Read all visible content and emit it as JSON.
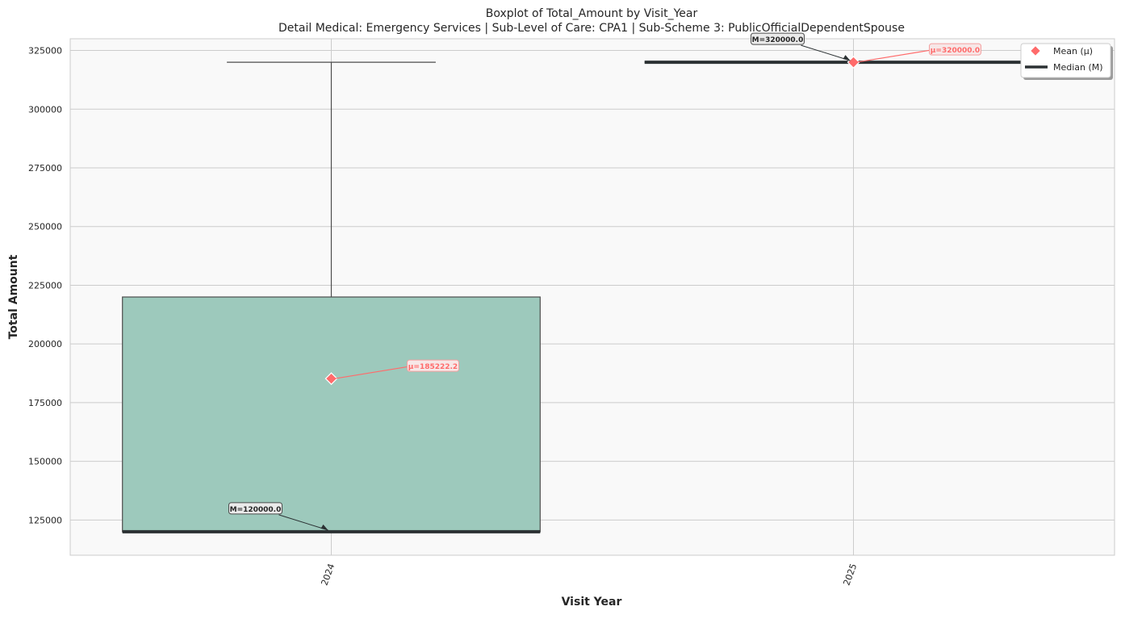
{
  "chart_data": {
    "type": "box",
    "title": "Boxplot of Total_Amount by Visit_Year",
    "subtitle": "Detail Medical: Emergency Services | Sub-Level of Care: CPA1 | Sub-Scheme 3: PublicOfficialDependentSpouse",
    "xlabel": "Visit Year",
    "ylabel": "Total Amount",
    "categories": [
      "2024",
      "2025"
    ],
    "ylim": [
      110000,
      330000
    ],
    "yticks": [
      125000,
      150000,
      175000,
      200000,
      225000,
      250000,
      275000,
      300000,
      325000
    ],
    "ytick_labels": [
      "125000",
      "150000",
      "175000",
      "200000",
      "225000",
      "250000",
      "275000",
      "300000",
      "325000"
    ],
    "boxes": [
      {
        "category": "2024",
        "min": 120000,
        "q1": 120000,
        "median": 120000,
        "q3": 220000,
        "max": 320000,
        "mean": 185222.2
      },
      {
        "category": "2025",
        "min": 320000,
        "q1": 320000,
        "median": 320000,
        "q3": 320000,
        "max": 320000,
        "mean": 320000.0
      }
    ],
    "median_labels": [
      "M=120000.0",
      "M=320000.0"
    ],
    "mean_labels": [
      "μ=185222.2",
      "μ=320000.0"
    ],
    "legend": {
      "position": "top-right",
      "entries": [
        {
          "label": "Mean (μ)",
          "marker": "diamond"
        },
        {
          "label": "Median (M)",
          "marker": "line"
        }
      ]
    },
    "grid": true,
    "colors": {
      "box_fill": "#9dc9bc",
      "box_edge": "#4d4d4d",
      "median": "#2b3133",
      "mean": "#ff6b6b",
      "grid": "#cccccc",
      "plot_bg": "#f9f9f9"
    }
  }
}
